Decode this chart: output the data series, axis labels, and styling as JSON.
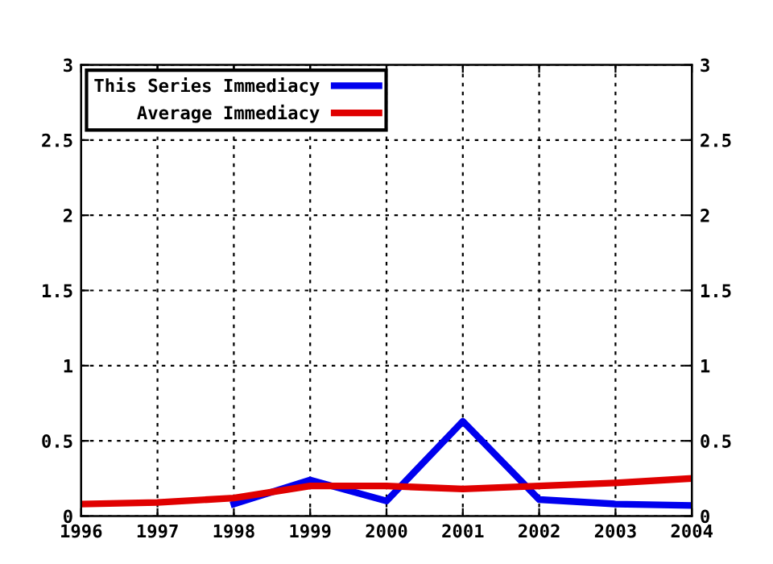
{
  "chart_data": {
    "type": "line",
    "x": [
      1996,
      1997,
      1998,
      1999,
      2000,
      2001,
      2002,
      2003,
      2004
    ],
    "series": [
      {
        "name": "This Series Immediacy",
        "color": "#0000ee",
        "values": [
          null,
          null,
          0.08,
          0.24,
          0.1,
          0.63,
          0.11,
          0.08,
          0.07
        ]
      },
      {
        "name": "Average Immediacy",
        "color": "#e00000",
        "values": [
          0.08,
          0.09,
          0.12,
          0.2,
          0.2,
          0.18,
          0.2,
          0.22,
          0.25
        ]
      }
    ],
    "xlim": [
      1996,
      2004
    ],
    "xticks": [
      1996,
      1997,
      1998,
      1999,
      2000,
      2001,
      2002,
      2003,
      2004
    ],
    "ylim": [
      0,
      3
    ],
    "yticks": [
      0,
      0.5,
      1,
      1.5,
      2,
      2.5,
      3
    ],
    "y2lim": [
      0,
      3
    ],
    "y2ticks": [
      0,
      0.5,
      1,
      1.5,
      2,
      2.5,
      3
    ],
    "grid": true,
    "legend": "top left",
    "marker": "none",
    "line_style": "solid"
  }
}
